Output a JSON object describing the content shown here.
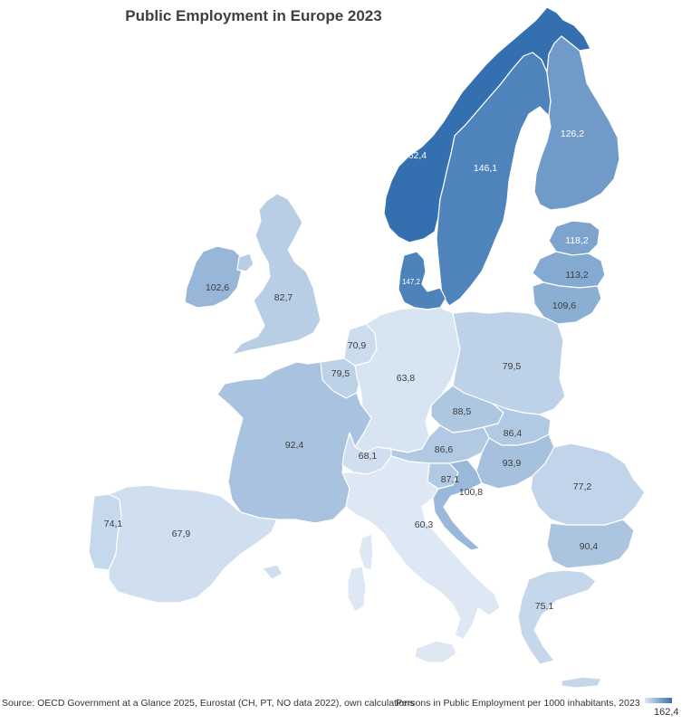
{
  "title": "Public Employment in Europe 2023",
  "source": "Source: OECD Government at a Glance 2025, Eurostat  (CH, PT, NO data 2022), own calculations",
  "legend": {
    "title": "Persons in Public Employment per 1000 inhabitants, 2023",
    "max_label": "162,4",
    "min_value": 60.3,
    "max_value": 162.4,
    "color_low": "#dde8f4",
    "color_high": "#3470b0"
  },
  "regions": [
    {
      "id": "norway",
      "value": 162.4,
      "label": "162,4"
    },
    {
      "id": "sweden",
      "value": 146.1,
      "label": "146,1"
    },
    {
      "id": "finland",
      "value": 126.2,
      "label": "126,2"
    },
    {
      "id": "denmark",
      "value": 147.2,
      "label": "147,2"
    },
    {
      "id": "estonia",
      "value": 118.2,
      "label": "118,2"
    },
    {
      "id": "latvia",
      "value": 113.2,
      "label": "113,2"
    },
    {
      "id": "lithuania",
      "value": 109.6,
      "label": "109,6"
    },
    {
      "id": "ireland",
      "value": 102.6,
      "label": "102,6"
    },
    {
      "id": "uk",
      "value": 82.7,
      "label": "82,7"
    },
    {
      "id": "netherlands",
      "value": 70.9,
      "label": "70,9"
    },
    {
      "id": "belgium",
      "value": 79.5,
      "label": "79,5"
    },
    {
      "id": "germany",
      "value": 63.8,
      "label": "63,8"
    },
    {
      "id": "poland",
      "value": 79.5,
      "label": "79,5"
    },
    {
      "id": "czechia",
      "value": 88.5,
      "label": "88,5"
    },
    {
      "id": "slovakia",
      "value": 86.4,
      "label": "86,4"
    },
    {
      "id": "austria",
      "value": 86.6,
      "label": "86,6"
    },
    {
      "id": "hungary",
      "value": 93.9,
      "label": "93,9"
    },
    {
      "id": "france",
      "value": 92.4,
      "label": "92,4"
    },
    {
      "id": "switzerland",
      "value": 68.1,
      "label": "68,1"
    },
    {
      "id": "slovenia",
      "value": 87.1,
      "label": "87,1"
    },
    {
      "id": "croatia",
      "value": 100.8,
      "label": "100,8"
    },
    {
      "id": "romania",
      "value": 77.2,
      "label": "77,2"
    },
    {
      "id": "bulgaria",
      "value": 90.4,
      "label": "90,4"
    },
    {
      "id": "italy",
      "value": 60.3,
      "label": "60,3"
    },
    {
      "id": "portugal",
      "value": 74.1,
      "label": "74,1"
    },
    {
      "id": "spain",
      "value": 67.9,
      "label": "67,9"
    },
    {
      "id": "greece",
      "value": 75.1,
      "label": "75,1"
    }
  ],
  "no_data_color": "#e7eef7"
}
